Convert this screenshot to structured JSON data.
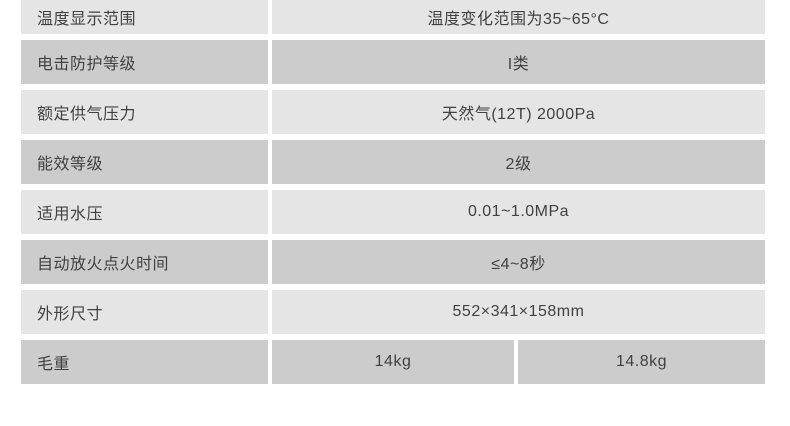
{
  "table": {
    "rows": [
      {
        "label": "温度显示范围",
        "value": "温度变化范围为35~65°C"
      },
      {
        "label": "电击防护等级",
        "value": "I类"
      },
      {
        "label": "额定供气压力",
        "value": "天然气(12T) 2000Pa"
      },
      {
        "label": "能效等级",
        "value": "2级"
      },
      {
        "label": "适用水压",
        "value": "0.01~1.0MPa"
      },
      {
        "label": "自动放火点火时间",
        "value": "≤4~8秒"
      },
      {
        "label": "外形尺寸",
        "value": "552×341×158mm"
      },
      {
        "label": "毛重",
        "values": [
          "14kg",
          "14.8kg"
        ]
      }
    ],
    "colors": {
      "row_light": "#e5e5e6",
      "row_dark": "#cccccd",
      "background": "#ffffff",
      "text": "#414141"
    }
  }
}
